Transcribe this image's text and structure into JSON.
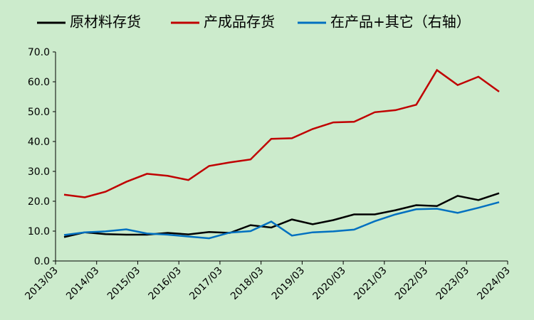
{
  "chart_data": {
    "type": "line",
    "xticks": [
      "2013/03",
      "2014/03",
      "2015/03",
      "2016/03",
      "2017/03",
      "2018/03",
      "2019/03",
      "2020/03",
      "2021/03",
      "2022/03",
      "2023/03",
      "2024/03"
    ],
    "series": [
      {
        "name": "原材料存货",
        "color": "#000000",
        "values": [
          8.0,
          9.6,
          9.0,
          8.8,
          8.8,
          9.4,
          8.9,
          9.7,
          9.4,
          12.0,
          11.2,
          13.9,
          12.3,
          13.7,
          15.6,
          15.6,
          17.0,
          18.7,
          18.4,
          21.8,
          20.4,
          22.7
        ]
      },
      {
        "name": "产成品存货",
        "color": "#c00000",
        "values": [
          22.2,
          21.3,
          23.2,
          26.5,
          29.2,
          28.5,
          27.1,
          31.8,
          33.0,
          34.0,
          40.9,
          41.1,
          44.2,
          46.4,
          46.6,
          49.8,
          50.5,
          52.3,
          63.9,
          58.9,
          61.7,
          56.7
        ]
      },
      {
        "name": "在产品+其它（右轴）",
        "color": "#0070c0",
        "values": [
          8.7,
          9.6,
          9.9,
          10.6,
          9.2,
          8.8,
          8.2,
          7.6,
          9.5,
          10.0,
          13.2,
          8.5,
          9.6,
          9.9,
          10.5,
          13.3,
          15.6,
          17.3,
          17.5,
          16.1,
          17.8,
          19.7
        ]
      }
    ],
    "ylim": [
      0,
      70
    ],
    "yticks": [
      {
        "value": 0,
        "label": "0.0"
      },
      {
        "value": 10,
        "label": "10.0"
      },
      {
        "value": 20,
        "label": "20.0"
      },
      {
        "value": 30,
        "label": "30.0"
      },
      {
        "value": 40,
        "label": "40.0"
      },
      {
        "value": 50,
        "label": "50.0"
      },
      {
        "value": 60,
        "label": "60.0"
      },
      {
        "value": 70,
        "label": "70.0"
      }
    ],
    "legend": "top"
  }
}
